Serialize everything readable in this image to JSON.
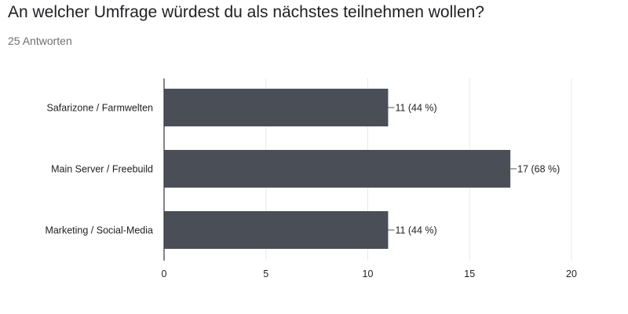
{
  "question": {
    "title": "An welcher Umfrage würdest du als nächstes teilnehmen wollen?",
    "response_count": "25 Antworten"
  },
  "chart_data": {
    "type": "bar",
    "orientation": "horizontal",
    "categories": [
      "Safarizone / Farmwelten",
      "Main Server / Freebuild",
      "Marketing / Social-Media"
    ],
    "values": [
      11,
      17,
      11
    ],
    "data_labels": [
      "11 (44 %)",
      "17 (68 %)",
      "11 (44 %)"
    ],
    "xlim": [
      0,
      20
    ],
    "x_ticks": [
      0,
      5,
      10,
      15,
      20
    ],
    "x_tick_labels": [
      "0",
      "5",
      "10",
      "15",
      "20"
    ],
    "grid": true,
    "colors": {
      "bar": "#4a4f57",
      "grid": "#e8e8e8",
      "axis": "#333333",
      "text": "#222222"
    }
  }
}
